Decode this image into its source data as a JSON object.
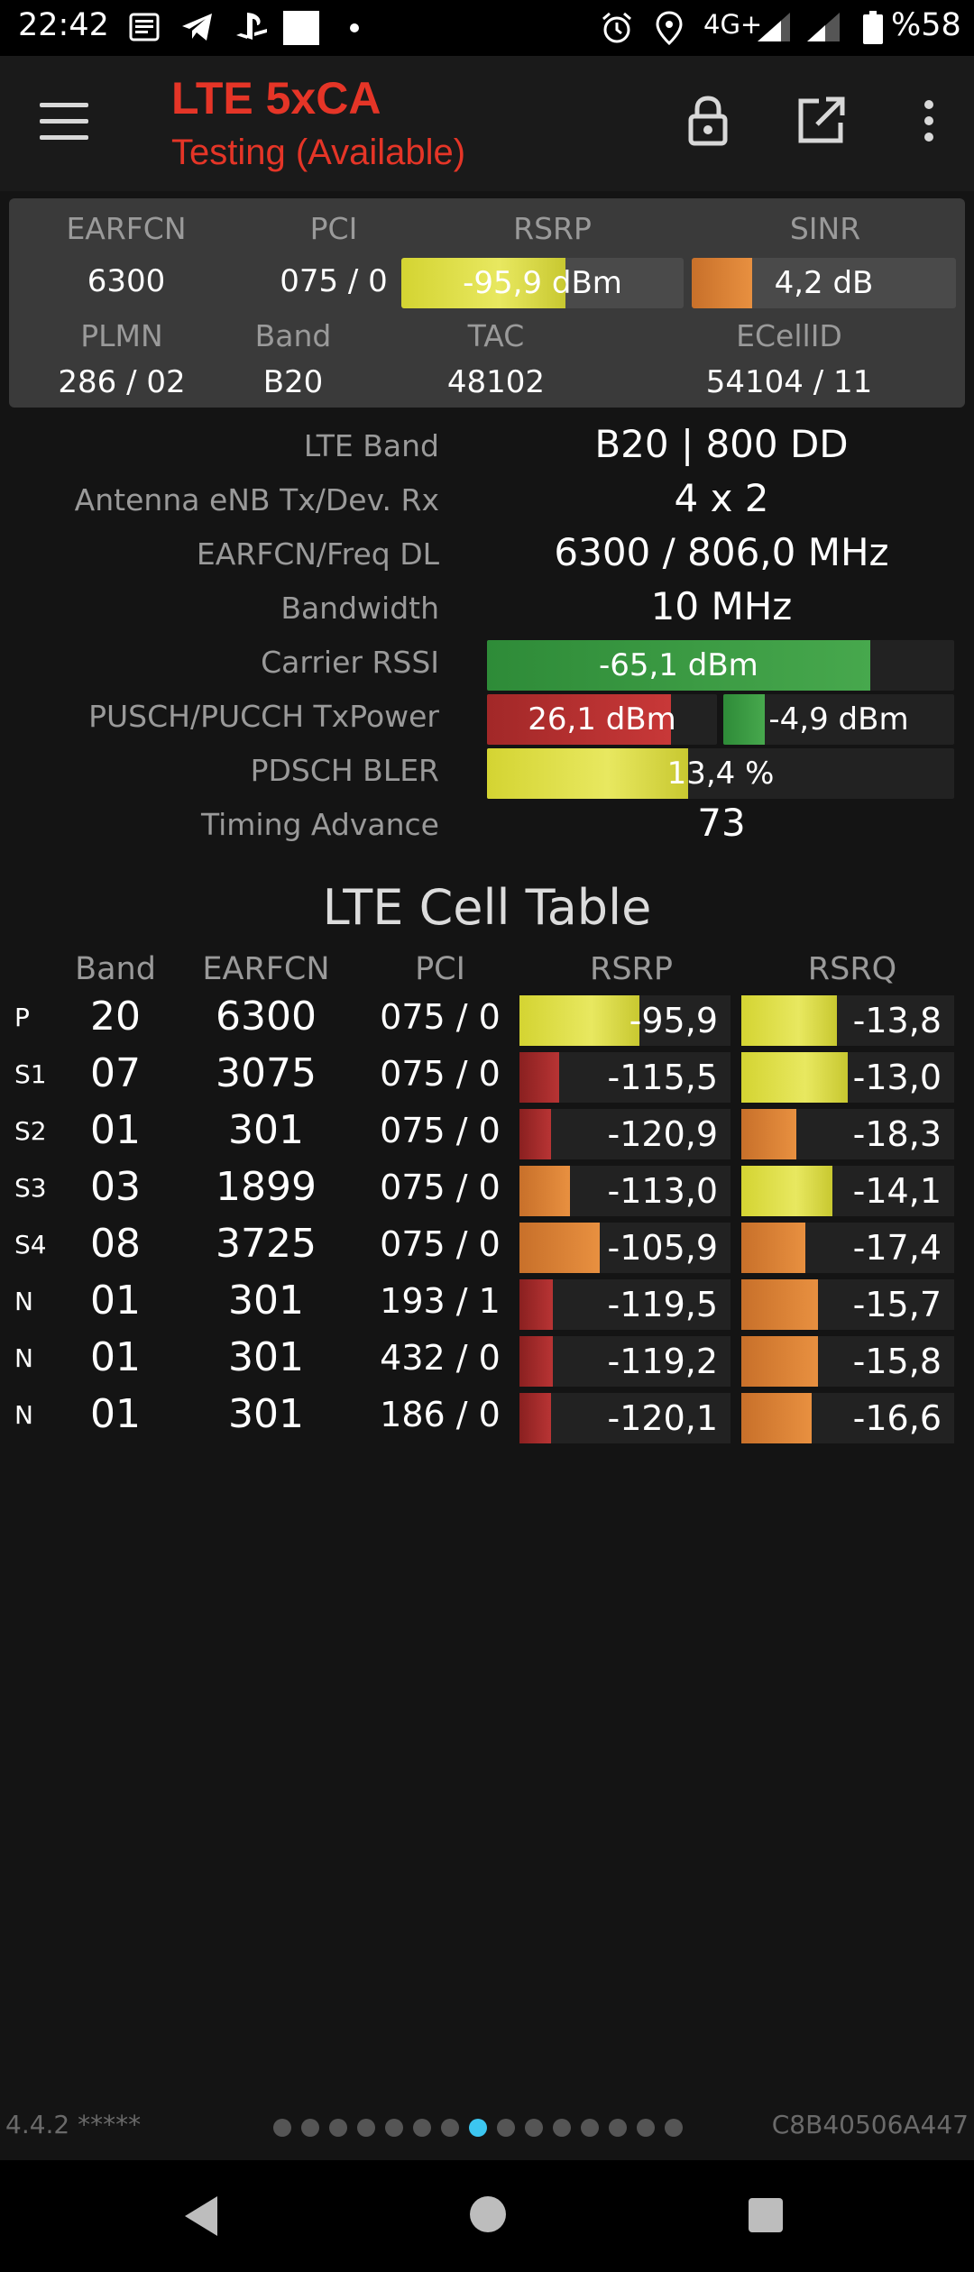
{
  "status_bar": {
    "time": "22:42",
    "network": "4G+",
    "battery": "%58",
    "icons": [
      "news-icon",
      "telegram-icon",
      "playstation-icon",
      "square-icon",
      "dot-icon",
      "alarm-icon",
      "location-icon",
      "signal-icon",
      "signal-icon",
      "battery-icon"
    ]
  },
  "app_bar": {
    "title": "LTE 5xCA",
    "subtitle": "Testing (Available)",
    "title_color": "#e53527",
    "icons": [
      "menu-icon",
      "lock-icon",
      "open-external-icon",
      "more-vert-icon"
    ]
  },
  "summary": {
    "earfcn_label": "EARFCN",
    "earfcn": "6300",
    "pci_label": "PCI",
    "pci": "075 / 0",
    "rsrp_label": "RSRP",
    "rsrp": "-95,9 dBm",
    "rsrp_fill": 0.58,
    "sinr_label": "SINR",
    "sinr": "4,2 dB",
    "sinr_fill": 0.23,
    "plmn_label": "PLMN",
    "plmn": "286 / 02",
    "band_label": "Band",
    "band": "B20",
    "tac_label": "TAC",
    "tac": "48102",
    "ecellid_label": "ECellID",
    "ecellid": "54104 / 11"
  },
  "details": {
    "lte_band_label": "LTE Band",
    "lte_band": "B20 | 800 DD",
    "antenna_label": "Antenna eNB Tx/Dev. Rx",
    "antenna": "4 x 2",
    "freq_label": "EARFCN/Freq DL",
    "freq": "6300 / 806,0 MHz",
    "bandwidth_label": "Bandwidth",
    "bandwidth": "10 MHz",
    "rssi_label": "Carrier RSSI",
    "rssi": "-65,1 dBm",
    "rssi_fill": 0.82,
    "txpower_label": "PUSCH/PUCCH TxPower",
    "pusch": "26,1 dBm",
    "pusch_fill": 0.8,
    "pucch": "-4,9 dBm",
    "pucch_fill": 0.18,
    "bler_label": "PDSCH BLER",
    "bler": "13,4 %",
    "bler_fill": 0.43,
    "ta_label": "Timing Advance",
    "ta": "73"
  },
  "cell_table": {
    "title": "LTE Cell Table",
    "headers": {
      "band": "Band",
      "earfcn": "EARFCN",
      "pci": "PCI",
      "rsrp": "RSRP",
      "rsrq": "RSRQ"
    },
    "rows": [
      {
        "label": "P",
        "band": "20",
        "earfcn": "6300",
        "pci": "075 / 0",
        "rsrp": "-95,9",
        "rsrp_fill": 0.57,
        "rsrp_color": "yellow",
        "rsrq": "-13,8",
        "rsrq_fill": 0.45,
        "rsrq_color": "yellow"
      },
      {
        "label": "S1",
        "band": "07",
        "earfcn": "3075",
        "pci": "075 / 0",
        "rsrp": "-115,5",
        "rsrp_fill": 0.19,
        "rsrp_color": "darkred",
        "rsrq": "-13,0",
        "rsrq_fill": 0.5,
        "rsrq_color": "yellow"
      },
      {
        "label": "S2",
        "band": "01",
        "earfcn": "301",
        "pci": "075 / 0",
        "rsrp": "-120,9",
        "rsrp_fill": 0.15,
        "rsrp_color": "darkred",
        "rsrq": "-18,3",
        "rsrq_fill": 0.26,
        "rsrq_color": "orange"
      },
      {
        "label": "S3",
        "band": "03",
        "earfcn": "1899",
        "pci": "075 / 0",
        "rsrp": "-113,0",
        "rsrp_fill": 0.24,
        "rsrp_color": "orange",
        "rsrq": "-14,1",
        "rsrq_fill": 0.43,
        "rsrq_color": "yellow"
      },
      {
        "label": "S4",
        "band": "08",
        "earfcn": "3725",
        "pci": "075 / 0",
        "rsrp": "-105,9",
        "rsrp_fill": 0.38,
        "rsrp_color": "orange",
        "rsrq": "-17,4",
        "rsrq_fill": 0.3,
        "rsrq_color": "orange"
      },
      {
        "label": "N",
        "band": "01",
        "earfcn": "301",
        "pci": "193 / 1",
        "rsrp": "-119,5",
        "rsrp_fill": 0.16,
        "rsrp_color": "darkred",
        "rsrq": "-15,7",
        "rsrq_fill": 0.36,
        "rsrq_color": "orange"
      },
      {
        "label": "N",
        "band": "01",
        "earfcn": "301",
        "pci": "432 / 0",
        "rsrp": "-119,2",
        "rsrp_fill": 0.16,
        "rsrp_color": "darkred",
        "rsrq": "-15,8",
        "rsrq_fill": 0.36,
        "rsrq_color": "orange"
      },
      {
        "label": "N",
        "band": "01",
        "earfcn": "301",
        "pci": "186 / 0",
        "rsrp": "-120,1",
        "rsrp_fill": 0.15,
        "rsrp_color": "darkred",
        "rsrq": "-16,6",
        "rsrq_fill": 0.33,
        "rsrq_color": "orange"
      }
    ]
  },
  "footer": {
    "version": "4.4.2 *****",
    "device_id": "C8B40506A447",
    "page_count": 15,
    "active_page": 8
  },
  "nav": {
    "icons": [
      "back-icon",
      "home-icon",
      "recents-icon"
    ]
  }
}
